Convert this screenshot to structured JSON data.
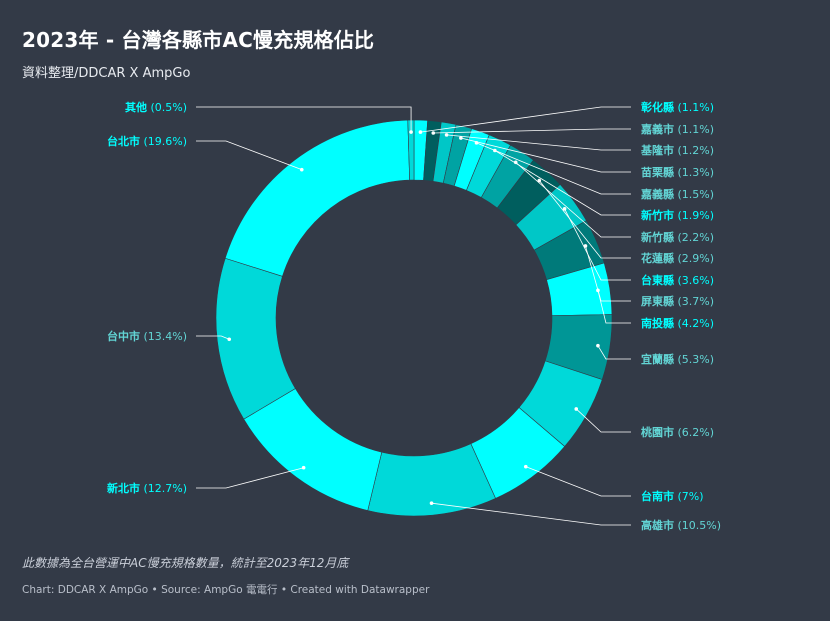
{
  "header": {
    "title": "2023年 - 台灣各縣市AC慢充規格佔比",
    "subtitle": "資料整理/DDCAR X AmpGo"
  },
  "note": "此數據為全台營運中AC慢充規格數量，統計至2023年12月底",
  "footer": "Chart: DDCAR X AmpGo • Source: AmpGo 電電行 • Created with Datawrapper",
  "colors": {
    "background": "#333a47",
    "cyan": "#00ffff",
    "teal_light": "#00d9d9",
    "teal_mid": "#00b8b8",
    "teal_dark": "#009696",
    "teal_deep": "#005e5e",
    "label_cyan": "#00ffff",
    "label_teal": "#62d4d4",
    "leader": "#ffffff"
  },
  "chart_data": {
    "type": "pie",
    "donut": true,
    "title": "2023年 - 台灣各縣市AC慢充規格佔比",
    "series": [
      {
        "name": "彰化縣",
        "value": 1.1,
        "label": "(1.1%)",
        "color": "#00ffff",
        "label_color": "#00ffff",
        "side": "right"
      },
      {
        "name": "嘉義市",
        "value": 1.1,
        "label": "(1.1%)",
        "color": "#005e5e",
        "label_color": "#62d4d4",
        "side": "right"
      },
      {
        "name": "基隆市",
        "value": 1.2,
        "label": "(1.2%)",
        "color": "#00c7c7",
        "label_color": "#62d4d4",
        "side": "right"
      },
      {
        "name": "苗栗縣",
        "value": 1.3,
        "label": "(1.3%)",
        "color": "#00a3a3",
        "label_color": "#62d4d4",
        "side": "right"
      },
      {
        "name": "嘉義縣",
        "value": 1.5,
        "label": "(1.5%)",
        "color": "#00ffff",
        "label_color": "#62d4d4",
        "side": "right"
      },
      {
        "name": "新竹市",
        "value": 1.9,
        "label": "(1.9%)",
        "color": "#00d9d9",
        "label_color": "#00ffff",
        "side": "right"
      },
      {
        "name": "新竹縣",
        "value": 2.2,
        "label": "(2.2%)",
        "color": "#00a3a3",
        "label_color": "#62d4d4",
        "side": "right"
      },
      {
        "name": "花蓮縣",
        "value": 2.9,
        "label": "(2.9%)",
        "color": "#005e5e",
        "label_color": "#62d4d4",
        "side": "right"
      },
      {
        "name": "台東縣",
        "value": 3.6,
        "label": "(3.6%)",
        "color": "#00c7c7",
        "label_color": "#00ffff",
        "side": "right"
      },
      {
        "name": "屏東縣",
        "value": 3.7,
        "label": "(3.7%)",
        "color": "#007a7a",
        "label_color": "#62d4d4",
        "side": "right"
      },
      {
        "name": "南投縣",
        "value": 4.2,
        "label": "(4.2%)",
        "color": "#00ffff",
        "label_color": "#00ffff",
        "side": "right"
      },
      {
        "name": "宜蘭縣",
        "value": 5.3,
        "label": "(5.3%)",
        "color": "#009696",
        "label_color": "#62d4d4",
        "side": "right"
      },
      {
        "name": "桃園市",
        "value": 6.2,
        "label": "(6.2%)",
        "color": "#00d9d9",
        "label_color": "#62d4d4",
        "side": "right"
      },
      {
        "name": "台南市",
        "value": 7.0,
        "label": "(7%)",
        "color": "#00ffff",
        "label_color": "#00ffff",
        "side": "right"
      },
      {
        "name": "高雄市",
        "value": 10.5,
        "label": "(10.5%)",
        "color": "#00d9d9",
        "label_color": "#62d4d4",
        "side": "right"
      },
      {
        "name": "新北市",
        "value": 12.7,
        "label": "(12.7%)",
        "color": "#00ffff",
        "label_color": "#00ffff",
        "side": "left"
      },
      {
        "name": "台中市",
        "value": 13.4,
        "label": "(13.4%)",
        "color": "#00d9d9",
        "label_color": "#62d4d4",
        "side": "left"
      },
      {
        "name": "台北市",
        "value": 19.6,
        "label": "(19.6%)",
        "color": "#00ffff",
        "label_color": "#00ffff",
        "side": "left"
      },
      {
        "name": "其他",
        "value": 0.5,
        "label": "(0.5%)",
        "color": "#00d9d9",
        "label_color": "#00ffff",
        "side": "left"
      }
    ]
  }
}
